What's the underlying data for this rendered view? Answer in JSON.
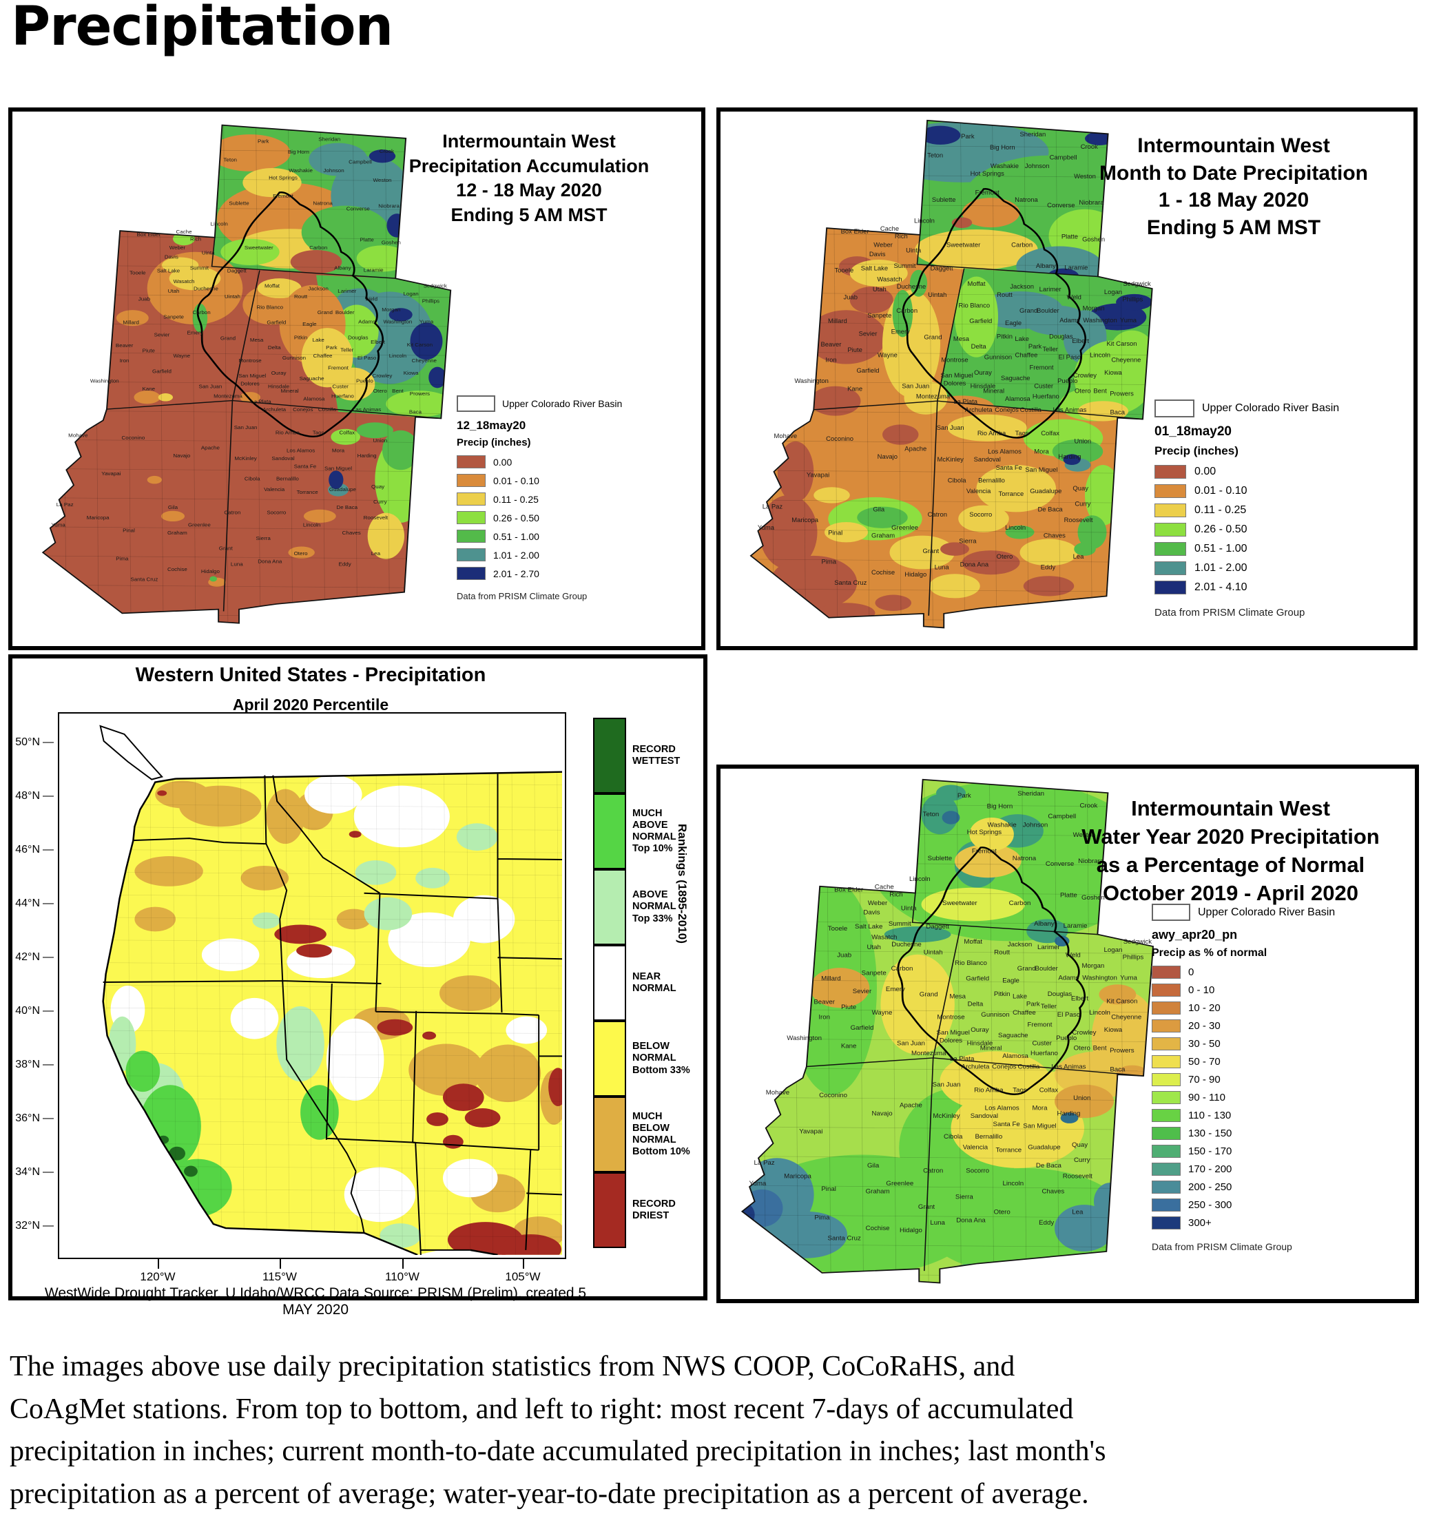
{
  "page": {
    "title": "Precipitation",
    "caption_lines": [
      "The images above use daily precipitation statistics from NWS COOP, CoCoRaHS, and",
      "CoAgMet stations. From top to bottom, and left to right: most recent 7-days of accumulated",
      "precipitation in inches; current month-to-date accumulated precipitation in inches; last month's",
      "precipitation as a percent of average; water-year-to-date precipitation as a percent of average."
    ]
  },
  "panel1": {
    "title_lines": [
      "Intermountain West",
      "Precipitation Accumulation",
      "12 - 18 May 2020",
      "Ending 5 AM MST"
    ],
    "legend": {
      "basin_label": "Upper Colorado River Basin",
      "layer_name": "12_18may20",
      "units_label": "Precip (inches)",
      "items": [
        {
          "color": "#b25740",
          "label": "0.00"
        },
        {
          "color": "#d98b3b",
          "label": "0.01 - 0.10"
        },
        {
          "color": "#eccf4b",
          "label": "0.11 - 0.25"
        },
        {
          "color": "#8ddf40",
          "label": "0.26 - 0.50"
        },
        {
          "color": "#53ba4a",
          "label": "0.51 - 1.00"
        },
        {
          "color": "#4e928f",
          "label": "1.01 - 2.00"
        },
        {
          "color": "#1b2d78",
          "label": "2.01 - 2.70"
        }
      ],
      "source": "Data from PRISM Climate Group"
    }
  },
  "panel2": {
    "title_lines": [
      "Intermountain West",
      "Month to Date Precipitation",
      "1 - 18 May 2020",
      "Ending 5 AM MST"
    ],
    "legend": {
      "basin_label": "Upper Colorado River Basin",
      "layer_name": "01_18may20",
      "units_label": "Precip (inches)",
      "items": [
        {
          "color": "#b25740",
          "label": "0.00"
        },
        {
          "color": "#d98b3b",
          "label": "0.01 - 0.10"
        },
        {
          "color": "#eccf4b",
          "label": "0.11 - 0.25"
        },
        {
          "color": "#8ddf40",
          "label": "0.26 - 0.50"
        },
        {
          "color": "#53ba4a",
          "label": "0.51 - 1.00"
        },
        {
          "color": "#4e928f",
          "label": "1.01 - 2.00"
        },
        {
          "color": "#1b2d78",
          "label": "2.01 - 4.10"
        }
      ],
      "source": "Data from PRISM Climate Group"
    }
  },
  "panel3": {
    "title": "Western United States - Precipitation",
    "subtitle": "April 2020 Percentile",
    "axis": {
      "lat_labels": [
        "50°N",
        "48°N",
        "46°N",
        "44°N",
        "42°N",
        "40°N",
        "38°N",
        "36°N",
        "34°N",
        "32°N"
      ],
      "lon_labels": [
        "120°W",
        "115°W",
        "110°W",
        "105°W"
      ]
    },
    "legend": {
      "items": [
        {
          "color": "#1f6b1f",
          "label": "RECORD\nWETTEST"
        },
        {
          "color": "#55d545",
          "label": "MUCH\nABOVE\nNORMAL\nTop 10%"
        },
        {
          "color": "#b5edb0",
          "label": "ABOVE\nNORMAL\nTop 33%"
        },
        {
          "color": "#ffffff",
          "label": "NEAR\nNORMAL"
        },
        {
          "color": "#fdf94b",
          "label": "BELOW\nNORMAL\nBottom 33%"
        },
        {
          "color": "#dfae43",
          "label": "MUCH\nBELOW\nNORMAL\nBottom 10%"
        },
        {
          "color": "#a52a22",
          "label": "RECORD\nDRIEST"
        }
      ],
      "rankings_label": "Rankings (1895-2010)"
    },
    "source": "WestWide Drought Tracker, U Idaho/WRCC Data Source: PRISM (Prelim), created 5 MAY 2020"
  },
  "panel4": {
    "title_lines": [
      "Intermountain West",
      "Water Year 2020 Precipitation",
      "as a Percentage of Normal",
      "October 2019 - April 2020"
    ],
    "legend": {
      "basin_label": "Upper Colorado River Basin",
      "layer_name": "awy_apr20_pn",
      "units_label": "Precip as % of normal",
      "items": [
        {
          "color": "#b25742",
          "label": "0"
        },
        {
          "color": "#c56a3c",
          "label": "0 - 10"
        },
        {
          "color": "#d0833c",
          "label": "10 - 20"
        },
        {
          "color": "#dc9b40",
          "label": "20 - 30"
        },
        {
          "color": "#e3b546",
          "label": "30 - 50"
        },
        {
          "color": "#efdf4e",
          "label": "50 - 70"
        },
        {
          "color": "#dcee4d",
          "label": "70 - 90"
        },
        {
          "color": "#9fe74b",
          "label": "90 - 110"
        },
        {
          "color": "#68d244",
          "label": "110 - 130"
        },
        {
          "color": "#4fbe4b",
          "label": "130 - 150"
        },
        {
          "color": "#4fae73",
          "label": "150 - 170"
        },
        {
          "color": "#4f9f88",
          "label": "170 - 200"
        },
        {
          "color": "#4a8c99",
          "label": "200 - 250"
        },
        {
          "color": "#3a6f9e",
          "label": "250 - 300"
        },
        {
          "color": "#1d3a7c",
          "label": "300+"
        }
      ],
      "source": "Data from PRISM Climate Group"
    }
  },
  "counties": [
    [
      "Park",
      318,
      35
    ],
    [
      "Sheridan",
      408,
      32
    ],
    [
      "Crook",
      486,
      50
    ],
    [
      "Teton",
      273,
      63
    ],
    [
      "Big Horn",
      366,
      51
    ],
    [
      "Campbell",
      450,
      66
    ],
    [
      "Washakie",
      369,
      79
    ],
    [
      "Johnson",
      414,
      79
    ],
    [
      "Weston",
      480,
      94
    ],
    [
      "Hot Springs",
      345,
      90
    ],
    [
      "Sublette",
      285,
      129
    ],
    [
      "Fremont",
      345,
      118
    ],
    [
      "Natrona",
      399,
      129
    ],
    [
      "Converse",
      447,
      137
    ],
    [
      "Niobrara",
      489,
      133
    ],
    [
      "Lincoln",
      258,
      160
    ],
    [
      "Sweetwater",
      312,
      196
    ],
    [
      "Carbon",
      393,
      196
    ],
    [
      "Platte",
      459,
      184
    ],
    [
      "Goshen",
      492,
      188
    ],
    [
      "Albany",
      426,
      227
    ],
    [
      "Laramie",
      468,
      230
    ],
    [
      "Box Elder",
      162,
      176
    ],
    [
      "Cache",
      210,
      172
    ],
    [
      "Rich",
      226,
      183
    ],
    [
      "Weber",
      201,
      196
    ],
    [
      "Davis",
      193,
      210
    ],
    [
      "Tooele",
      147,
      234
    ],
    [
      "Salt Lake",
      189,
      231
    ],
    [
      "Summit",
      231,
      227
    ],
    [
      "Wasatch",
      210,
      247
    ],
    [
      "Utah",
      196,
      262
    ],
    [
      "Juab",
      156,
      274
    ],
    [
      "Millard",
      138,
      309
    ],
    [
      "Sanpete",
      196,
      301
    ],
    [
      "Carbon",
      234,
      294
    ],
    [
      "Duchesne",
      240,
      258
    ],
    [
      "Uintah",
      276,
      270
    ],
    [
      "Daggett",
      282,
      231
    ],
    [
      "Uinta",
      243,
      204
    ],
    [
      "Sevier",
      180,
      328
    ],
    [
      "Emery",
      225,
      325
    ],
    [
      "Grand",
      270,
      333
    ],
    [
      "Beaver",
      129,
      344
    ],
    [
      "Piute",
      162,
      352
    ],
    [
      "Wayne",
      207,
      360
    ],
    [
      "Iron",
      129,
      367
    ],
    [
      "Garfield",
      180,
      383
    ],
    [
      "Washington",
      102,
      398
    ],
    [
      "Kane",
      162,
      410
    ],
    [
      "San Juan",
      246,
      406
    ],
    [
      "Moffat",
      330,
      254
    ],
    [
      "Routt",
      369,
      270
    ],
    [
      "Jackson",
      393,
      258
    ],
    [
      "Larimer",
      432,
      262
    ],
    [
      "Weld",
      465,
      274
    ],
    [
      "Logan",
      519,
      266
    ],
    [
      "Sedgwick",
      552,
      254
    ],
    [
      "Phillips",
      546,
      277
    ],
    [
      "Morgan",
      492,
      290
    ],
    [
      "Rio Blanco",
      327,
      286
    ],
    [
      "Grand",
      402,
      294
    ],
    [
      "Boulder",
      429,
      294
    ],
    [
      "Garfield",
      336,
      309
    ],
    [
      "Eagle",
      381,
      312
    ],
    [
      "Adams",
      459,
      308
    ],
    [
      "Washington",
      501,
      308
    ],
    [
      "Yuma",
      540,
      308
    ],
    [
      "Mesa",
      309,
      336
    ],
    [
      "Delta",
      333,
      347
    ],
    [
      "Pitkin",
      369,
      332
    ],
    [
      "Lake",
      393,
      336
    ],
    [
      "Douglas",
      447,
      332
    ],
    [
      "Elbert",
      474,
      339
    ],
    [
      "Kit Carson",
      531,
      343
    ],
    [
      "Montrose",
      300,
      367
    ],
    [
      "Gunnison",
      360,
      363
    ],
    [
      "Chaffee",
      399,
      360
    ],
    [
      "Park",
      411,
      347
    ],
    [
      "Teller",
      432,
      351
    ],
    [
      "El Paso",
      459,
      363
    ],
    [
      "Lincoln",
      501,
      360
    ],
    [
      "Cheyenne",
      537,
      367
    ],
    [
      "San Miguel",
      303,
      390
    ],
    [
      "Ouray",
      339,
      386
    ],
    [
      "Saguache",
      384,
      394
    ],
    [
      "Fremont",
      420,
      378
    ],
    [
      "Custer",
      423,
      406
    ],
    [
      "Pueblo",
      456,
      398
    ],
    [
      "Crowley",
      480,
      390
    ],
    [
      "Kiowa",
      519,
      386
    ],
    [
      "Otero",
      477,
      413
    ],
    [
      "Bent",
      501,
      413
    ],
    [
      "Prowers",
      531,
      417
    ],
    [
      "Dolores",
      300,
      402
    ],
    [
      "Hinsdale",
      339,
      406
    ],
    [
      "Mineral",
      354,
      413
    ],
    [
      "Montezuma",
      270,
      421
    ],
    [
      "La Plata",
      315,
      429
    ],
    [
      "Archuleta",
      333,
      441
    ],
    [
      "Conejos",
      372,
      441
    ],
    [
      "Alamosa",
      387,
      425
    ],
    [
      "Costilla",
      405,
      441
    ],
    [
      "Huerfano",
      426,
      421
    ],
    [
      "Las Animas",
      459,
      441
    ],
    [
      "Baca",
      525,
      445
    ],
    [
      "Mohave",
      66,
      480
    ],
    [
      "Coconino",
      141,
      484
    ],
    [
      "Navajo",
      207,
      511
    ],
    [
      "Apache",
      246,
      499
    ],
    [
      "Yavapai",
      111,
      538
    ],
    [
      "La Paz",
      48,
      585
    ],
    [
      "Gila",
      195,
      589
    ],
    [
      "Maricopa",
      93,
      605
    ],
    [
      "Yuma",
      39,
      616
    ],
    [
      "Pinal",
      135,
      624
    ],
    [
      "Greenlee",
      231,
      616
    ],
    [
      "Graham",
      201,
      628
    ],
    [
      "Pima",
      126,
      667
    ],
    [
      "Cochise",
      201,
      683
    ],
    [
      "Santa Cruz",
      156,
      698
    ],
    [
      "San Juan",
      294,
      468
    ],
    [
      "Rio Arriba",
      351,
      476
    ],
    [
      "Taos",
      393,
      476
    ],
    [
      "Colfax",
      432,
      476
    ],
    [
      "Union",
      477,
      488
    ],
    [
      "McKinley",
      294,
      515
    ],
    [
      "Los Alamos",
      369,
      503
    ],
    [
      "Sandoval",
      345,
      515
    ],
    [
      "Mora",
      420,
      503
    ],
    [
      "Harding",
      459,
      511
    ],
    [
      "Santa Fe",
      375,
      527
    ],
    [
      "San Miguel",
      420,
      530
    ],
    [
      "Cibola",
      303,
      546
    ],
    [
      "Bernalillo",
      351,
      546
    ],
    [
      "Quay",
      474,
      558
    ],
    [
      "Valencia",
      333,
      562
    ],
    [
      "Torrance",
      378,
      566
    ],
    [
      "Guadalupe",
      426,
      562
    ],
    [
      "Curry",
      477,
      581
    ],
    [
      "Catron",
      276,
      597
    ],
    [
      "Socorro",
      336,
      597
    ],
    [
      "De Baca",
      432,
      589
    ],
    [
      "Roosevelt",
      471,
      605
    ],
    [
      "Lincoln",
      384,
      616
    ],
    [
      "Chaves",
      438,
      628
    ],
    [
      "Grant",
      267,
      651
    ],
    [
      "Sierra",
      318,
      636
    ],
    [
      "Otero",
      369,
      659
    ],
    [
      "Lea",
      471,
      659
    ],
    [
      "Luna",
      282,
      675
    ],
    [
      "Dona Ana",
      327,
      671
    ],
    [
      "Eddy",
      429,
      675
    ],
    [
      "Hidalgo",
      246,
      686
    ]
  ]
}
